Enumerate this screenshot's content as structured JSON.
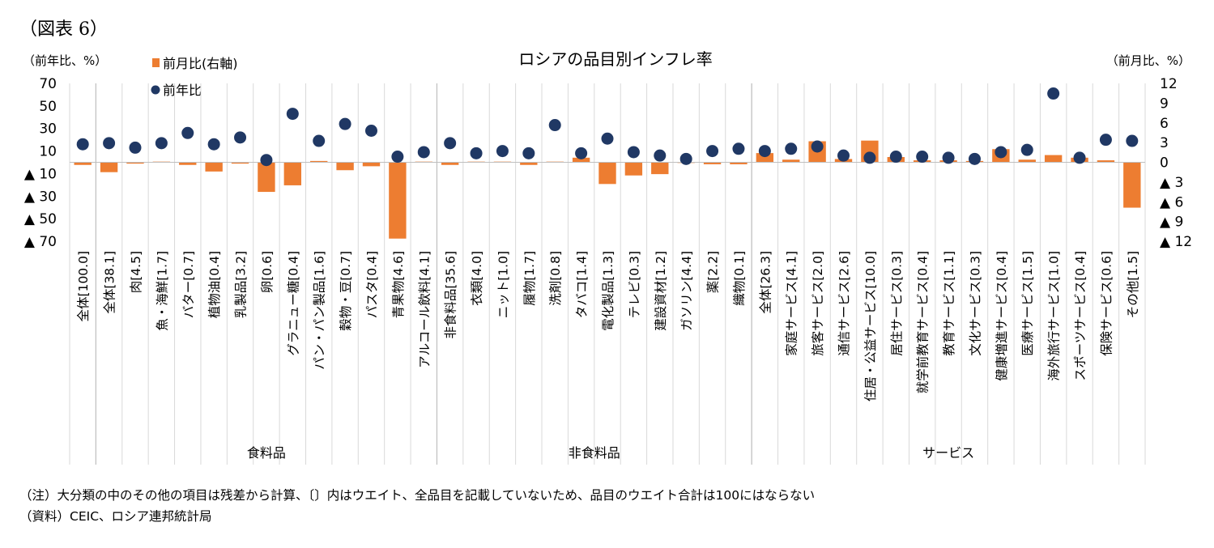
{
  "figure_label": "（図表 6）",
  "notes": [
    "（注）大分類の中のその他の項目は残差から計算、〔〕内はウエイト、全品目を記載していないため、品目のウエイト合計は100にはならない",
    "（資料）CEIC、ロシア連邦統計局"
  ],
  "chart_data": {
    "type": "bar",
    "title": "ロシアの品目別インフレ率",
    "left_axis_unit": "（前年比、%）",
    "right_axis_unit": "（前月比、%）",
    "left_ylim": [
      -70,
      70
    ],
    "right_ylim": [
      -12,
      12
    ],
    "left_ticks": [
      70,
      50,
      30,
      10,
      -10,
      -30,
      -50,
      -70
    ],
    "left_tick_labels": [
      "70",
      "50",
      "30",
      "10",
      "▲ 10",
      "▲ 30",
      "▲ 50",
      "▲ 70"
    ],
    "right_ticks": [
      12,
      9,
      6,
      3,
      0,
      -3,
      -6,
      -9,
      -12
    ],
    "right_tick_labels": [
      "12",
      "9",
      "6",
      "3",
      "0",
      "▲ 3",
      "▲ 6",
      "▲ 9",
      "▲ 12"
    ],
    "legend": {
      "position": "top-left",
      "bar": "前月比(右軸)",
      "dot": "前年比"
    },
    "colors": {
      "bar": "#ED7D31",
      "dot": "#203864",
      "grid": "#D9D9D9"
    },
    "categories": [
      "全体[100.0]",
      "全体[38.1]",
      "肉[4.5]",
      "魚・海鮮[1.7]",
      "バター[0.7]",
      "植物油[0.4]",
      "乳製品[3.2]",
      "卵[0.6]",
      "グラニュー糖[0.4]",
      "パン・パン製品[1.6]",
      "穀物・豆[0.7]",
      "パスタ[0.4]",
      "青果物[4.6]",
      "アルコール飲料[4.1]",
      "非食料品[35.6]",
      "衣類[4.0]",
      "ニット[1.0]",
      "履物[1.7]",
      "洗剤[0.8]",
      "タバコ[1.4]",
      "電化製品[1.3]",
      "テレビ[0.3]",
      "建設資材[1.2]",
      "ガソリン[4.4]",
      "薬[2.2]",
      "織物[0.1]",
      "全体[26.3]",
      "家庭サービス[4.1]",
      "旅客サービス[2.0]",
      "通信サービス[2.6]",
      "住居・公益サービス[10.0]",
      "居住サービス[0.3]",
      "就学前教育サービス[0.4]",
      "教育サービス[1.1]",
      "文化サービス[0.3]",
      "健康増進サービス[0.4]",
      "医療サービス[1.5]",
      "海外旅行サービス[1.0]",
      "スポーツサービス[0.4]",
      "保険サービス[0.6]",
      "その他[1.5]"
    ],
    "groups": [
      {
        "name": "食料品",
        "start": 1,
        "end": 13
      },
      {
        "name": "非食料品",
        "start": 14,
        "end": 25
      },
      {
        "name": "サービス",
        "start": 26,
        "end": 40
      }
    ],
    "series": [
      {
        "name": "前月比(右軸)",
        "axis": "right",
        "kind": "bar",
        "values": [
          -0.4,
          -1.5,
          -0.2,
          0.1,
          -0.4,
          -1.4,
          -0.2,
          -4.5,
          -3.5,
          0.2,
          -1.2,
          -0.6,
          -11.6,
          0.1,
          -0.4,
          0.1,
          0.1,
          -0.4,
          0.1,
          0.7,
          -3.3,
          -2.0,
          -1.8,
          0.0,
          -0.3,
          -0.3,
          1.4,
          0.4,
          3.2,
          0.5,
          3.3,
          0.8,
          0.3,
          0.3,
          0.2,
          2.0,
          0.4,
          1.1,
          0.7,
          0.3,
          -6.9
        ]
      },
      {
        "name": "前年比",
        "axis": "left",
        "kind": "dot",
        "values": [
          16,
          17,
          13,
          17,
          26,
          16,
          22,
          2,
          43,
          19,
          34,
          28,
          5,
          9,
          17,
          8,
          10,
          8,
          33,
          8,
          21,
          9,
          6,
          3,
          10,
          12,
          10,
          12,
          14,
          6,
          4,
          5,
          5,
          4,
          3,
          9,
          11,
          61,
          4,
          20,
          19
        ]
      }
    ]
  }
}
